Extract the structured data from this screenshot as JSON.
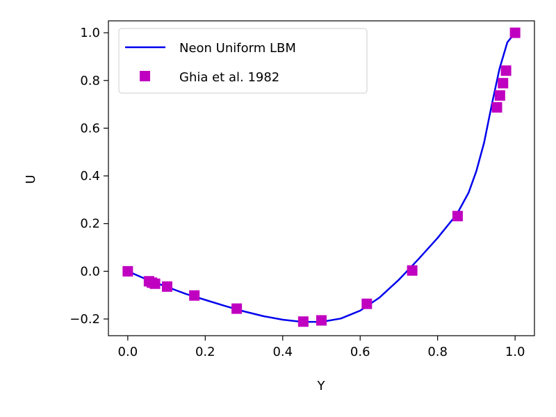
{
  "chart_data": {
    "type": "line",
    "title": "",
    "xlabel": "Y",
    "ylabel": "U",
    "xlim": [
      -0.05,
      1.05
    ],
    "ylim": [
      -0.27,
      1.05
    ],
    "xticks": [
      0.0,
      0.2,
      0.4,
      0.6,
      0.8,
      1.0
    ],
    "xtick_labels": [
      "0.0",
      "0.2",
      "0.4",
      "0.6",
      "0.8",
      "1.0"
    ],
    "yticks": [
      -0.2,
      0.0,
      0.2,
      0.4,
      0.6,
      0.8,
      1.0
    ],
    "ytick_labels": [
      "−0.2",
      "0.0",
      "0.2",
      "0.4",
      "0.6",
      "0.8",
      "1.0"
    ],
    "grid": false,
    "legend_position": "top-left",
    "series": [
      {
        "name": "Neon Uniform LBM",
        "style": "line",
        "color": "#0000ee",
        "x": [
          0.0,
          0.05,
          0.1,
          0.15,
          0.2,
          0.25,
          0.3,
          0.35,
          0.4,
          0.45,
          0.5,
          0.55,
          0.6,
          0.65,
          0.7,
          0.75,
          0.8,
          0.85,
          0.88,
          0.9,
          0.92,
          0.94,
          0.96,
          0.98,
          1.0
        ],
        "y": [
          0.0,
          -0.035,
          -0.065,
          -0.095,
          -0.12,
          -0.145,
          -0.168,
          -0.188,
          -0.203,
          -0.212,
          -0.212,
          -0.198,
          -0.165,
          -0.11,
          -0.035,
          0.05,
          0.14,
          0.24,
          0.33,
          0.42,
          0.54,
          0.7,
          0.85,
          0.96,
          1.0
        ]
      },
      {
        "name": "Ghia et al. 1982",
        "style": "marker",
        "marker": "square",
        "color": "#c000c0",
        "x": [
          0.0,
          0.0547,
          0.0625,
          0.0703,
          0.1016,
          0.1719,
          0.2813,
          0.4531,
          0.5,
          0.6172,
          0.7344,
          0.8516,
          0.9531,
          0.9609,
          0.9688,
          0.9766,
          1.0
        ],
        "y": [
          0.0,
          -0.0419,
          -0.0477,
          -0.0521,
          -0.0641,
          -0.1015,
          -0.1566,
          -0.2109,
          -0.2058,
          -0.1364,
          0.0033,
          0.2315,
          0.6872,
          0.7372,
          0.7887,
          0.8412,
          1.0
        ]
      }
    ]
  }
}
